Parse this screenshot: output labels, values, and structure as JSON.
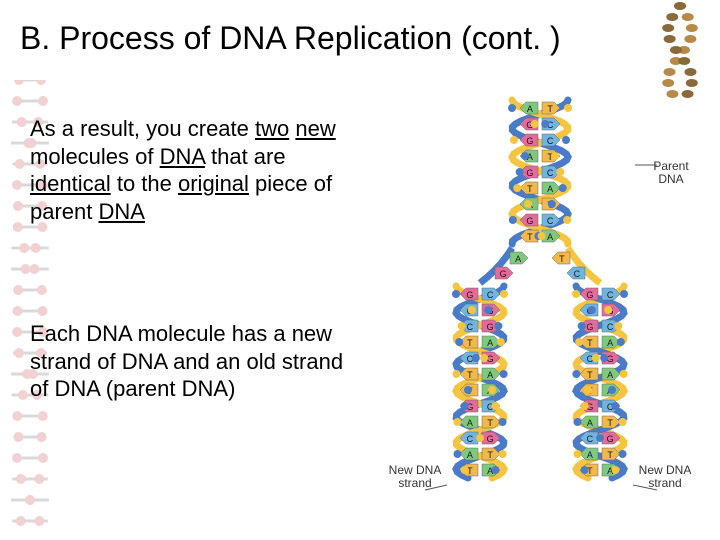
{
  "title": "B. Process of DNA Replication (cont. )",
  "paragraph1_html": "As a result, you create <span class='u'>two</span> <span class='u'>new</span> molecules of <span class='u'>DNA</span> that are <span class='u'>identical</span> to the <span class='u'>original</span> piece of parent <span class='u'>DNA</span>",
  "paragraph2": "Each DNA molecule has a new strand of DNA and an old strand of DNA (parent DNA)",
  "diagram": {
    "label_parent": "Parent DNA",
    "label_new_left": "New DNA strand",
    "label_new_right": "New DNA strand",
    "colors": {
      "strand_blue": "#4a7bc8",
      "strand_yellow": "#f5c542",
      "base_A": "#7fc97f",
      "base_T": "#f2b84a",
      "base_G": "#e46a9a",
      "base_C": "#6fb5e0",
      "letter": "#1a1a1a"
    },
    "top_helix_pairs": [
      [
        "A",
        "T"
      ],
      [
        "G",
        "C"
      ],
      [
        "G",
        "C"
      ],
      [
        "A",
        "T"
      ],
      [
        "G",
        "C"
      ],
      [
        "T",
        "A"
      ],
      [
        "A",
        "T"
      ],
      [
        "G",
        "C"
      ],
      [
        "T",
        "A"
      ]
    ],
    "fork_left_pairs": [
      [
        "G",
        "C"
      ],
      [
        "C",
        "G"
      ],
      [
        "C",
        "G"
      ],
      [
        "T",
        "A"
      ],
      [
        "C",
        "G"
      ],
      [
        "T",
        "A"
      ],
      [
        "T",
        "A"
      ],
      [
        "G",
        "C"
      ],
      [
        "A",
        "T"
      ],
      [
        "C",
        "G"
      ],
      [
        "A",
        "T"
      ],
      [
        "T",
        "A"
      ]
    ],
    "fork_right_pairs": [
      [
        "G",
        "C"
      ],
      [
        "C",
        "G"
      ],
      [
        "G",
        "C"
      ],
      [
        "T",
        "A"
      ],
      [
        "C",
        "G"
      ],
      [
        "T",
        "A"
      ],
      [
        "T",
        "A"
      ],
      [
        "G",
        "C"
      ],
      [
        "A",
        "T"
      ],
      [
        "C",
        "G"
      ],
      [
        "A",
        "T"
      ],
      [
        "T",
        "A"
      ]
    ]
  },
  "bg_helix_color_a": "#c94a4a",
  "bg_helix_color_b": "#6a6a6a"
}
